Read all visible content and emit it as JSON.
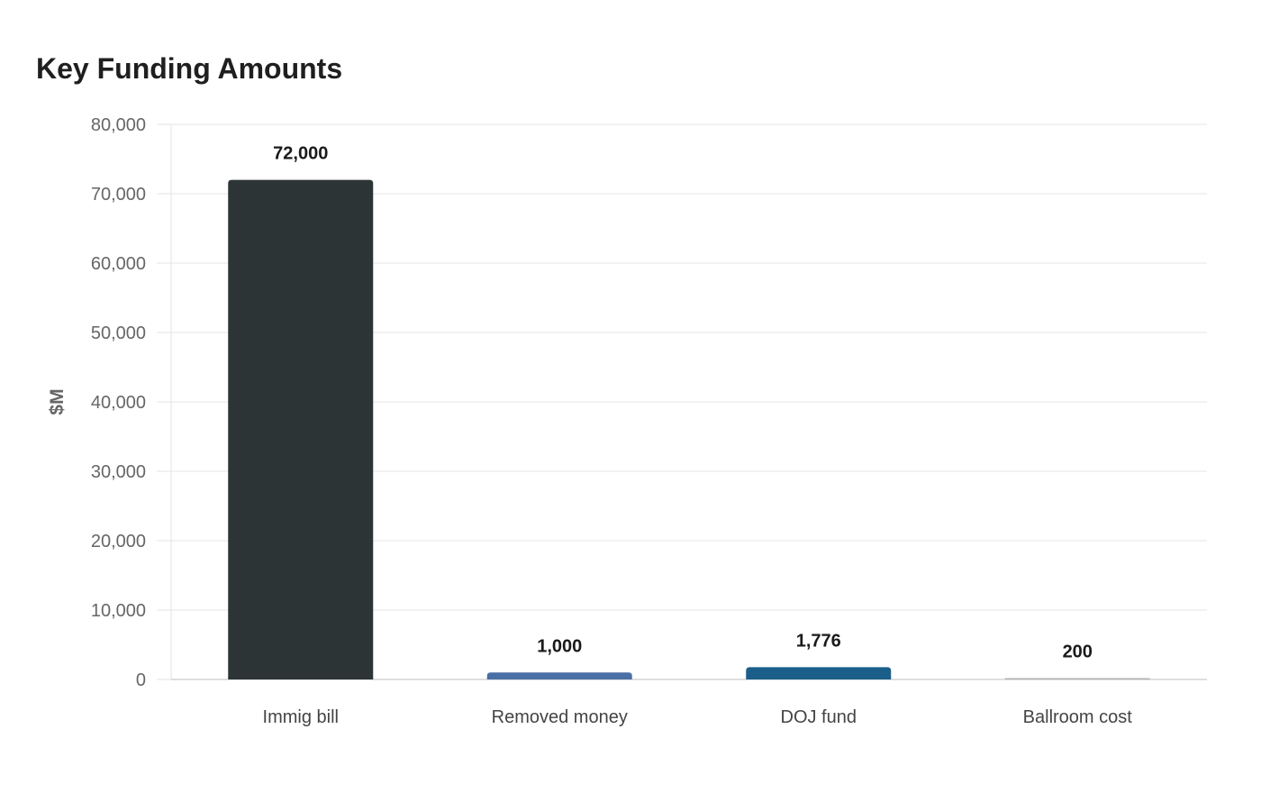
{
  "chart_data": {
    "type": "bar",
    "title": "Key Funding Amounts",
    "xlabel": "",
    "ylabel": "$M",
    "categories": [
      "Immig bill",
      "Removed money",
      "DOJ fund",
      "Ballroom cost"
    ],
    "values": [
      72000,
      1000,
      1776,
      200
    ],
    "value_labels": [
      "72,000",
      "1,000",
      "1,776",
      "200"
    ],
    "ylim": [
      0,
      80000
    ],
    "yticks": [
      0,
      10000,
      20000,
      30000,
      40000,
      50000,
      60000,
      70000,
      80000
    ],
    "ytick_labels": [
      "0",
      "10,000",
      "20,000",
      "30,000",
      "40,000",
      "50,000",
      "60,000",
      "70,000",
      "80,000"
    ],
    "bar_colors": [
      "#2d3436",
      "#4a6fa5",
      "#1b5e89",
      "#b0b0b0"
    ],
    "grid": true,
    "legend": "none"
  }
}
